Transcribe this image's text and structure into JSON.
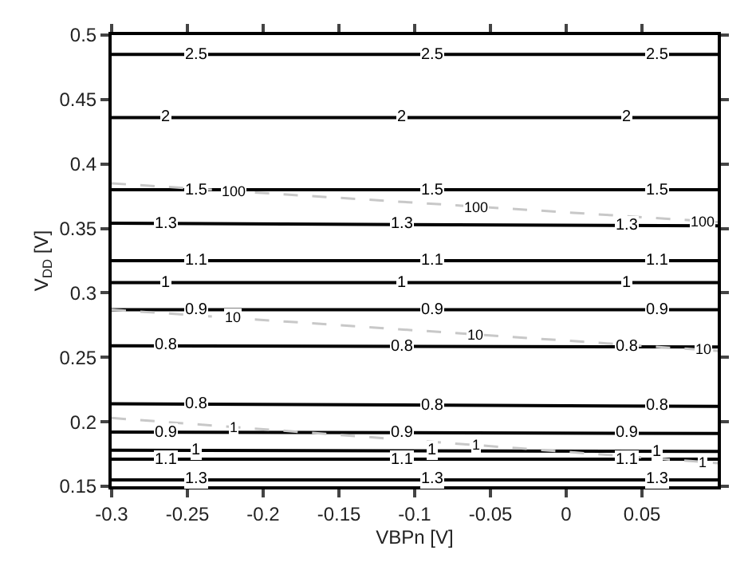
{
  "chart_data": {
    "type": "line",
    "xlabel": "VBPn [V]",
    "ylabel": "V$_{DD}$ [V]",
    "x": [
      -0.3,
      0.1
    ],
    "xlim": [
      -0.3,
      0.1
    ],
    "xticks": [
      -0.3,
      -0.25,
      -0.2,
      -0.15,
      -0.1,
      -0.05,
      0,
      0.05
    ],
    "ylim": [
      0.15,
      0.5
    ],
    "yticks": [
      0.15,
      0.2,
      0.25,
      0.3,
      0.35,
      0.4,
      0.45,
      0.5
    ],
    "legend": false,
    "marker": "none",
    "line_style": "solid",
    "series": [
      {
        "name": "2.5",
        "color": "#000000",
        "values": [
          0.485,
          0.485
        ]
      },
      {
        "name": "2",
        "color": "#000000",
        "values": [
          0.436,
          0.436
        ]
      },
      {
        "name": "1.5",
        "color": "#000000",
        "values": [
          0.38,
          0.38
        ]
      },
      {
        "name": "1.3",
        "color": "#000000",
        "values": [
          0.354,
          0.352
        ]
      },
      {
        "name": "1.1",
        "color": "#000000",
        "values": [
          0.325,
          0.325
        ]
      },
      {
        "name": "1",
        "color": "#000000",
        "values": [
          0.308,
          0.308
        ]
      },
      {
        "name": "0.9",
        "color": "#000000",
        "values": [
          0.287,
          0.287
        ]
      },
      {
        "name": "0.8",
        "color": "#000000",
        "values": [
          0.259,
          0.258
        ]
      },
      {
        "name": "0.8",
        "color": "#000000",
        "values": [
          0.214,
          0.212
        ]
      },
      {
        "name": "0.9",
        "color": "#000000",
        "values": [
          0.192,
          0.191
        ]
      },
      {
        "name": "1",
        "color": "#000000",
        "values": [
          0.178,
          0.177
        ]
      },
      {
        "name": "1.1",
        "color": "#000000",
        "values": [
          0.171,
          0.171
        ]
      },
      {
        "name": "1.3",
        "color": "#000000",
        "values": [
          0.155,
          0.155
        ]
      },
      {
        "name": "100",
        "color": "#c8c8c8",
        "line_style": "dashed",
        "values": [
          0.385,
          0.355
        ]
      },
      {
        "name": "10",
        "color": "#c8c8c8",
        "line_style": "dashed",
        "values": [
          0.287,
          0.255
        ]
      },
      {
        "name": "1",
        "color": "#c8c8c8",
        "line_style": "dashed",
        "values": [
          0.203,
          0.168
        ]
      }
    ]
  }
}
